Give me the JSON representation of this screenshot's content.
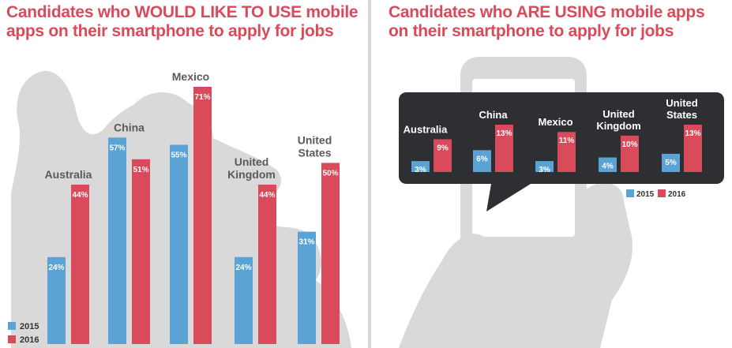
{
  "left": {
    "title_pre": "Candidates who ",
    "title_emph": "WOULD LIKE TO USE",
    "title_post": " mobile apps on their smartphone to apply for jobs"
  },
  "right": {
    "title_pre": "Candidates who ",
    "title_emph": "ARE USING",
    "title_post": " mobile apps on their smartphone to apply for jobs"
  },
  "colors": {
    "c2015": "#5ba3d4",
    "c2016": "#d94a5a",
    "panel": "#2e2f33",
    "silhouette": "#d9d9d9",
    "label": "#5a5a5a"
  },
  "chart_data": [
    {
      "type": "bar",
      "categories": [
        "Australia",
        "China",
        "Mexico",
        "United Kingdom",
        "United States"
      ],
      "category_lines": [
        [
          "Australia"
        ],
        [
          "China"
        ],
        [
          "Mexico"
        ],
        [
          "United",
          "Kingdom"
        ],
        [
          "United",
          "States"
        ]
      ],
      "series": [
        {
          "name": "2015",
          "values": [
            24,
            57,
            55,
            24,
            31
          ]
        },
        {
          "name": "2016",
          "values": [
            44,
            51,
            71,
            44,
            50
          ]
        }
      ],
      "value_labels": [
        [
          "24%",
          "57%",
          "55%",
          "24%",
          "31%"
        ],
        [
          "44%",
          "51%",
          "71%",
          "44%",
          "50%"
        ]
      ],
      "legend": [
        "2015",
        "2016"
      ],
      "legend_position": "bottom-left"
    },
    {
      "type": "bar",
      "categories": [
        "Australia",
        "China",
        "Mexico",
        "United Kingdom",
        "United States"
      ],
      "category_lines": [
        [
          "Australia"
        ],
        [
          "China"
        ],
        [
          "Mexico"
        ],
        [
          "United",
          "Kingdom"
        ],
        [
          "United",
          "States"
        ]
      ],
      "series": [
        {
          "name": "2015",
          "values": [
            3,
            6,
            3,
            4,
            5
          ]
        },
        {
          "name": "2016",
          "values": [
            9,
            13,
            11,
            10,
            13
          ]
        }
      ],
      "value_labels": [
        [
          "3%",
          "6%",
          "3%",
          "4%",
          "5%"
        ],
        [
          "9%",
          "13%",
          "11%",
          "10%",
          "13%"
        ]
      ],
      "legend": [
        "2015",
        "2016"
      ],
      "legend_position": "bottom-right"
    }
  ]
}
